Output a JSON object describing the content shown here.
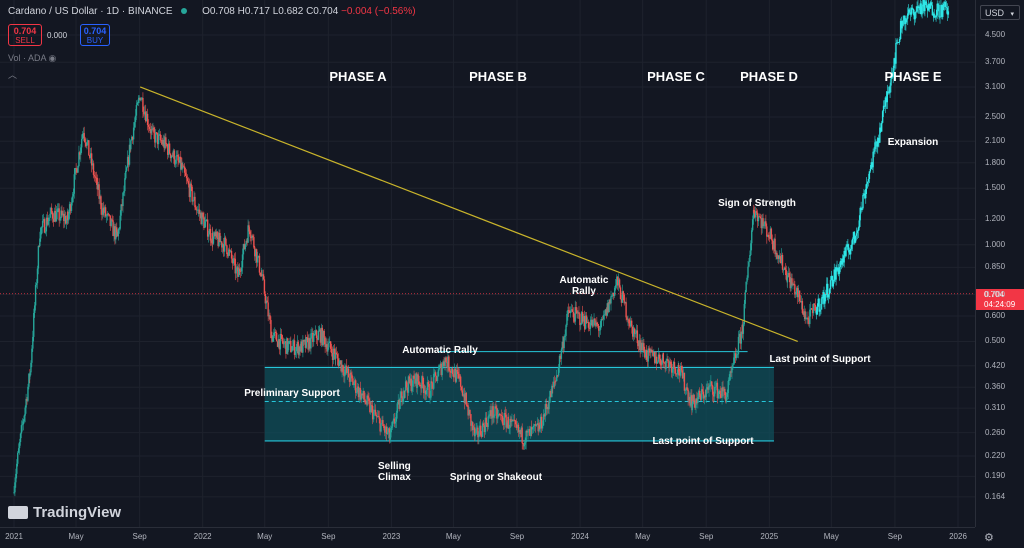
{
  "header": {
    "symbol": "Cardano / US Dollar · 1D · BINANCE",
    "ohlc_o": "O0.708",
    "ohlc_h": "H0.717",
    "ohlc_l": "L0.682",
    "ohlc_c": "C0.704",
    "change": "−0.004 (−0.56%)"
  },
  "trade": {
    "sell_price": "0.704",
    "sell_label": "SELL",
    "spread": "0.000",
    "buy_price": "0.704",
    "buy_label": "BUY"
  },
  "volume_label": "Vol · ADA",
  "logo_text": "TradingView",
  "currency_button": "USD",
  "current_price": "0.704",
  "countdown": "04:24:09",
  "colors": {
    "up": "#26a69a",
    "down": "#ef5350",
    "trendline": "#c9b42b",
    "range_box": "#0f4f5a",
    "range_line": "#26c6da",
    "markup_candles": "#2ee6e6"
  },
  "chart_data": {
    "type": "line",
    "title": "",
    "y_scale": "log",
    "ylim": [
      0.14,
      5.7
    ],
    "y_ticks": [
      "4.500",
      "3.700",
      "3.100",
      "2.500",
      "2.100",
      "1.800",
      "1.500",
      "1.200",
      "1.000",
      "0.850",
      "0.700",
      "0.600",
      "0.500",
      "0.420",
      "0.360",
      "0.310",
      "0.260",
      "0.220",
      "0.190",
      "0.164"
    ],
    "y_tick_values": [
      4.5,
      3.7,
      3.1,
      2.5,
      2.1,
      1.8,
      1.5,
      1.2,
      1.0,
      0.85,
      0.7,
      0.6,
      0.5,
      0.42,
      0.36,
      0.31,
      0.26,
      0.22,
      0.19,
      0.164
    ],
    "x_ticks": [
      "2021",
      "May",
      "Sep",
      "2022",
      "May",
      "Sep",
      "2023",
      "May",
      "Sep",
      "2024",
      "May",
      "Sep",
      "2025",
      "May",
      "Sep",
      "2026"
    ],
    "x_tick_dates": [
      "2021-01-01",
      "2021-05-01",
      "2021-09-01",
      "2022-01-01",
      "2022-05-01",
      "2022-09-01",
      "2023-01-01",
      "2023-05-01",
      "2023-09-01",
      "2024-01-01",
      "2024-05-01",
      "2024-09-01",
      "2025-01-01",
      "2025-05-01",
      "2025-09-01",
      "2026-01-01"
    ],
    "series": [
      {
        "type": "candlestick",
        "points": [
          [
            "2021-01-01",
            0.18
          ],
          [
            "2021-02-01",
            0.4
          ],
          [
            "2021-02-20",
            1.1
          ],
          [
            "2021-03-15",
            1.25
          ],
          [
            "2021-04-15",
            1.2
          ],
          [
            "2021-05-15",
            2.3
          ],
          [
            "2021-06-20",
            1.3
          ],
          [
            "2021-07-20",
            1.05
          ],
          [
            "2021-08-15",
            2.1
          ],
          [
            "2021-09-02",
            2.95
          ],
          [
            "2021-09-25",
            2.2
          ],
          [
            "2021-10-20",
            2.05
          ],
          [
            "2021-11-20",
            1.75
          ],
          [
            "2021-12-20",
            1.3
          ],
          [
            "2022-01-20",
            1.05
          ],
          [
            "2022-02-15",
            1.0
          ],
          [
            "2022-03-10",
            0.8
          ],
          [
            "2022-04-01",
            1.15
          ],
          [
            "2022-04-25",
            0.8
          ],
          [
            "2022-05-15",
            0.52
          ],
          [
            "2022-06-15",
            0.48
          ],
          [
            "2022-07-15",
            0.48
          ],
          [
            "2022-08-15",
            0.53
          ],
          [
            "2022-09-15",
            0.45
          ],
          [
            "2022-10-15",
            0.38
          ],
          [
            "2022-11-15",
            0.32
          ],
          [
            "2022-12-29",
            0.25
          ],
          [
            "2023-01-25",
            0.36
          ],
          [
            "2023-02-20",
            0.38
          ],
          [
            "2023-03-15",
            0.35
          ],
          [
            "2023-04-15",
            0.44
          ],
          [
            "2023-05-15",
            0.37
          ],
          [
            "2023-06-12",
            0.25
          ],
          [
            "2023-07-15",
            0.3
          ],
          [
            "2023-08-15",
            0.28
          ],
          [
            "2023-09-15",
            0.25
          ],
          [
            "2023-10-15",
            0.27
          ],
          [
            "2023-11-15",
            0.38
          ],
          [
            "2023-12-10",
            0.62
          ],
          [
            "2024-01-10",
            0.58
          ],
          [
            "2024-02-10",
            0.55
          ],
          [
            "2024-03-12",
            0.77
          ],
          [
            "2024-04-10",
            0.55
          ],
          [
            "2024-05-10",
            0.45
          ],
          [
            "2024-06-10",
            0.44
          ],
          [
            "2024-07-10",
            0.41
          ],
          [
            "2024-08-05",
            0.32
          ],
          [
            "2024-09-10",
            0.36
          ],
          [
            "2024-10-10",
            0.34
          ],
          [
            "2024-11-10",
            0.55
          ],
          [
            "2024-12-02",
            1.3
          ],
          [
            "2025-01-05",
            1.05
          ],
          [
            "2025-02-05",
            0.8
          ],
          [
            "2025-02-25",
            0.7
          ],
          [
            "2025-03-15",
            0.58
          ],
          [
            "2025-04-15",
            0.68
          ],
          [
            "2025-05-15",
            0.85
          ],
          [
            "2025-06-15",
            1.05
          ],
          [
            "2025-07-10",
            1.6
          ],
          [
            "2025-08-01",
            2.2
          ],
          [
            "2025-08-25",
            3.4
          ],
          [
            "2025-09-15",
            5.0
          ],
          [
            "2025-10-20",
            5.5
          ],
          [
            "2025-11-20",
            5.4
          ],
          [
            "2025-12-15",
            5.4
          ]
        ]
      }
    ],
    "trendline": {
      "from": [
        "2021-09-02",
        3.1
      ],
      "to": [
        "2025-02-25",
        0.5
      ]
    },
    "trading_range": {
      "top": 0.415,
      "bottom": 0.245,
      "mid": 0.325,
      "from": "2022-05-01",
      "to": "2025-01-10"
    },
    "automatic_rally_level": {
      "value": 0.465,
      "from": "2023-04-01",
      "to": "2024-11-20"
    },
    "annotations": [
      "PHASE A",
      "PHASE B",
      "PHASE C",
      "PHASE D",
      "PHASE E",
      "Expansion",
      "Sign of Strength",
      "Automatic Rally",
      "Automatic Rally",
      "Preliminary Support",
      "Selling Climax",
      "Spring or Shakeout",
      "Last point of Support",
      "Last point of Support"
    ]
  }
}
